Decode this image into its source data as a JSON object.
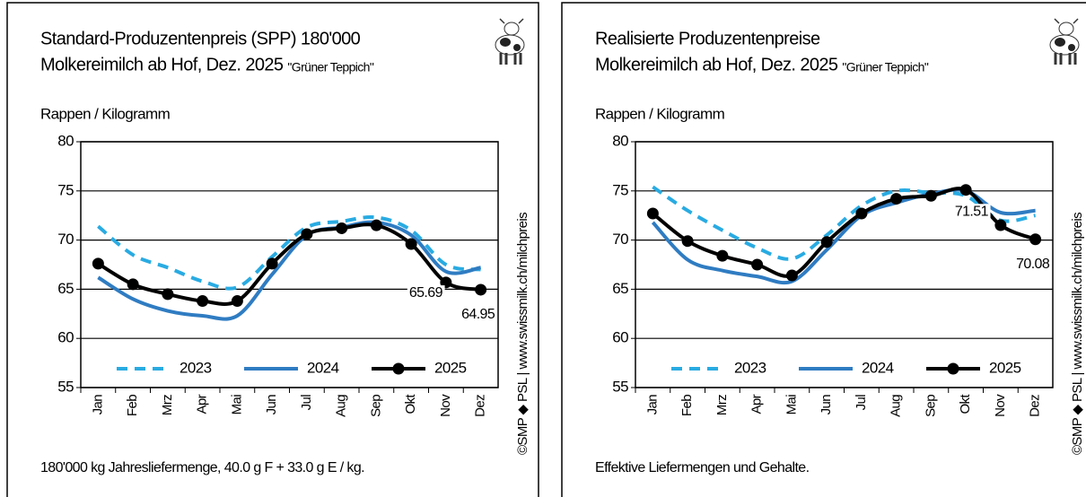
{
  "chart_data": [
    {
      "type": "line",
      "title": "Standard-Produzentenpreis (SPP) 180'000",
      "subtitle": "Molkereimilch ab Hof, Dez. 2025",
      "subtitle_note": "\"Grüner Teppich\"",
      "y_label": "Rappen / Kilogramm",
      "footnote": "180'000 kg Jahresliefermenge, 40.0 g F + 33.0 g E / kg.",
      "source": "©SMP ◆ PSL | www.swissmilk.ch/milchpreis",
      "categories": [
        "Jan",
        "Feb",
        "Mrz",
        "Apr",
        "Mai",
        "Jun",
        "Jul",
        "Aug",
        "Sep",
        "Okt",
        "Nov",
        "Dez"
      ],
      "series": [
        {
          "name": "2023",
          "color": "#29abe2",
          "style": "dashed",
          "values": [
            71.4,
            68.5,
            67.2,
            65.8,
            65.2,
            68.3,
            71.3,
            71.9,
            72.3,
            71.0,
            67.5,
            67.0
          ]
        },
        {
          "name": "2024",
          "color": "#2f7cc2",
          "style": "solid",
          "values": [
            66.2,
            64.0,
            62.8,
            62.3,
            62.3,
            66.5,
            70.5,
            71.3,
            71.8,
            70.5,
            66.8,
            67.2
          ]
        },
        {
          "name": "2025",
          "color": "#000000",
          "style": "markers",
          "values": [
            67.6,
            65.5,
            64.5,
            63.8,
            63.8,
            67.6,
            70.6,
            71.2,
            71.5,
            69.6,
            65.69,
            64.95
          ],
          "value_labels": [
            null,
            null,
            null,
            null,
            null,
            null,
            null,
            null,
            null,
            null,
            "65.69",
            "64.95"
          ]
        }
      ],
      "ylim": [
        55,
        80
      ],
      "yticks": [
        55,
        60,
        65,
        70,
        75,
        80
      ],
      "grid": true,
      "legend": "bottom"
    },
    {
      "type": "line",
      "title": "Realisierte Produzentenpreise",
      "subtitle": "Molkereimilch ab Hof, Dez. 2025",
      "subtitle_note": "\"Grüner Teppich\"",
      "y_label": "Rappen / Kilogramm",
      "footnote": "Effektive Liefermengen und Gehalte.",
      "source": "©SMP ◆ PSL | www.swissmilk.ch/milchpreis",
      "categories": [
        "Jan",
        "Feb",
        "Mrz",
        "Apr",
        "Mai",
        "Jun",
        "Jul",
        "Aug",
        "Sep",
        "Okt",
        "Nov",
        "Dez"
      ],
      "series": [
        {
          "name": "2023",
          "color": "#29abe2",
          "style": "dashed",
          "values": [
            75.4,
            73.0,
            71.0,
            69.2,
            68.1,
            70.5,
            73.5,
            75.0,
            74.8,
            74.5,
            72.0,
            72.5
          ]
        },
        {
          "name": "2024",
          "color": "#2f7cc2",
          "style": "solid",
          "values": [
            71.8,
            68.0,
            66.9,
            66.3,
            65.8,
            69.0,
            72.5,
            73.8,
            74.7,
            75.0,
            72.8,
            73.0
          ]
        },
        {
          "name": "2025",
          "color": "#000000",
          "style": "markers",
          "values": [
            72.7,
            69.9,
            68.4,
            67.5,
            66.4,
            69.8,
            72.7,
            74.2,
            74.5,
            75.1,
            71.51,
            70.08
          ],
          "value_labels": [
            null,
            null,
            null,
            null,
            null,
            null,
            null,
            null,
            null,
            null,
            "71.51",
            "70.08"
          ]
        }
      ],
      "ylim": [
        55,
        80
      ],
      "yticks": [
        55,
        60,
        65,
        70,
        75,
        80
      ],
      "grid": true,
      "legend": "bottom"
    }
  ]
}
